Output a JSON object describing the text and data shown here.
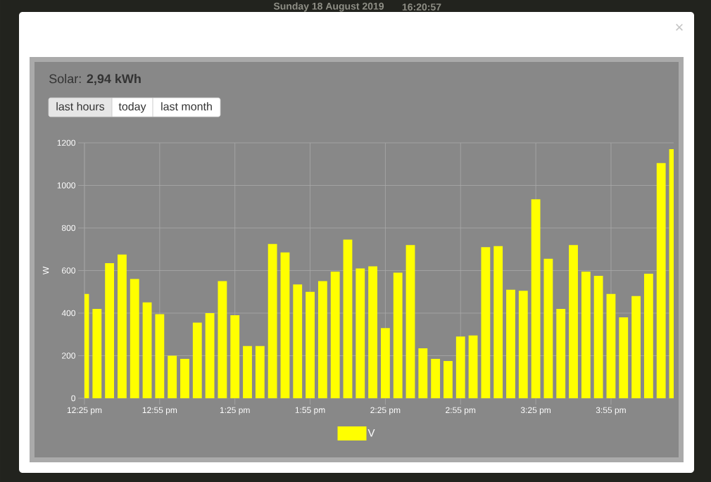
{
  "chart_data": {
    "type": "bar",
    "title": "Solar: **2,94 kWh**",
    "ylabel": "W",
    "annotations": [
      "Sunday 18 August 2019",
      "16:20:57",
      "last hours",
      "today",
      "last month",
      "×"
    ],
    "x": [
      "2019-08-18T12:25",
      "2019-08-18T12:30",
      "2019-08-18T12:35",
      "2019-08-18T12:40",
      "2019-08-18T12:45",
      "2019-08-18T12:50",
      "2019-08-18T12:55",
      "2019-08-18T13:00",
      "2019-08-18T13:05",
      "2019-08-18T13:10",
      "2019-08-18T13:15",
      "2019-08-18T13:20",
      "2019-08-18T13:25",
      "2019-08-18T13:30",
      "2019-08-18T13:35",
      "2019-08-18T13:40",
      "2019-08-18T13:45",
      "2019-08-18T13:50",
      "2019-08-18T13:55",
      "2019-08-18T14:00",
      "2019-08-18T14:05",
      "2019-08-18T14:10",
      "2019-08-18T14:15",
      "2019-08-18T14:20",
      "2019-08-18T14:25",
      "2019-08-18T14:30",
      "2019-08-18T14:35",
      "2019-08-18T14:40",
      "2019-08-18T14:45",
      "2019-08-18T14:50",
      "2019-08-18T14:55",
      "2019-08-18T15:00",
      "2019-08-18T15:05",
      "2019-08-18T15:10",
      "2019-08-18T15:15",
      "2019-08-18T15:20",
      "2019-08-18T15:25",
      "2019-08-18T15:30",
      "2019-08-18T15:35",
      "2019-08-18T15:40",
      "2019-08-18T15:45",
      "2019-08-18T15:50",
      "2019-08-18T15:55",
      "2019-08-18T16:00",
      "2019-08-18T16:05",
      "2019-08-18T16:10",
      "2019-08-18T16:15",
      "2019-08-18T16:20"
    ],
    "series": [
      {
        "name": "V",
        "color": "#ffff00",
        "values": [
          490,
          420,
          635,
          675,
          560,
          450,
          395,
          200,
          185,
          355,
          400,
          550,
          390,
          245,
          245,
          725,
          685,
          535,
          500,
          550,
          595,
          745,
          610,
          620,
          330,
          590,
          720,
          235,
          185,
          175,
          290,
          295,
          710,
          715,
          510,
          505,
          935,
          655,
          420,
          720,
          595,
          575,
          490,
          380,
          480,
          585,
          1105,
          1170
        ]
      }
    ],
    "xlim": [
      "2019-08-18T12:25",
      "2019-08-18T16:20"
    ],
    "xticks": [
      {
        "value": "2019-08-18T12:25",
        "label": "12:25 pm"
      },
      {
        "value": "2019-08-18T12:55",
        "label": "12:55 pm"
      },
      {
        "value": "2019-08-18T13:25",
        "label": "1:25 pm"
      },
      {
        "value": "2019-08-18T13:55",
        "label": "1:55 pm"
      },
      {
        "value": "2019-08-18T14:25",
        "label": "2:25 pm"
      },
      {
        "value": "2019-08-18T14:55",
        "label": "2:55 pm"
      },
      {
        "value": "2019-08-18T15:25",
        "label": "3:25 pm"
      },
      {
        "value": "2019-08-18T15:55",
        "label": "3:55 pm"
      }
    ],
    "ylim": [
      0,
      1200
    ],
    "yticks": [
      0,
      200,
      400,
      600,
      800,
      1000,
      1200
    ],
    "grid": true,
    "legend": "bottom"
  }
}
